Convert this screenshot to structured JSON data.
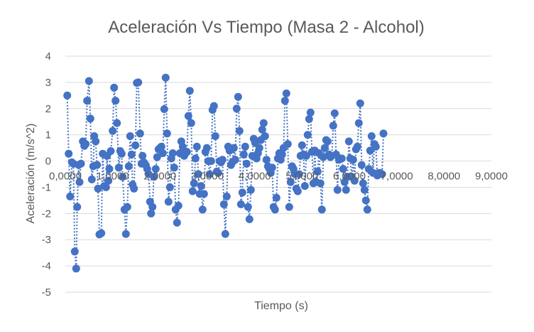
{
  "chart_data": {
    "type": "scatter",
    "title": "Aceleración Vs Tiempo (Masa 2 - Alcohol)",
    "xlabel": "Tiempo (s)",
    "ylabel": "Aceleración (m/s^2)",
    "xlim": [
      0,
      9
    ],
    "ylim": [
      -5,
      4
    ],
    "x_ticks": [
      0,
      1,
      2,
      3,
      4,
      5,
      6,
      7,
      8,
      9
    ],
    "x_tick_labels": [
      "0,0000",
      "1,0000",
      "2,0000",
      "3,0000",
      "4,0000",
      "5,0000",
      "6,0000",
      "7,0000",
      "8,0000",
      "9,0000"
    ],
    "y_ticks": [
      4,
      3,
      2,
      1,
      0,
      -1,
      -2,
      -3,
      -4,
      -5
    ],
    "y_tick_labels": [
      "4",
      "3",
      "2",
      "1",
      "0",
      "-1",
      "-2",
      "-3",
      "-4",
      "-5"
    ],
    "grid": "horizontal",
    "legend": "none",
    "marker_color": "#4472c4",
    "line_style": "dotted",
    "series": [
      {
        "points": [
          [
            0.04,
            2.5
          ],
          [
            0.07,
            0.28
          ],
          [
            0.1,
            -1.35
          ],
          [
            0.14,
            -0.05
          ],
          [
            0.17,
            -0.1
          ],
          [
            0.2,
            -3.45
          ],
          [
            0.23,
            -4.1
          ],
          [
            0.25,
            -1.75
          ],
          [
            0.28,
            -0.15
          ],
          [
            0.3,
            -0.8
          ],
          [
            0.33,
            -0.1
          ],
          [
            0.37,
            0.75
          ],
          [
            0.4,
            0.58
          ],
          [
            0.43,
            0.65
          ],
          [
            0.46,
            2.3
          ],
          [
            0.5,
            3.05
          ],
          [
            0.53,
            1.62
          ],
          [
            0.56,
            -0.7
          ],
          [
            0.59,
            -0.2
          ],
          [
            0.61,
            0.95
          ],
          [
            0.64,
            0.75
          ],
          [
            0.67,
            -0.15
          ],
          [
            0.69,
            -1.05
          ],
          [
            0.72,
            -2.8
          ],
          [
            0.76,
            -2.75
          ],
          [
            0.79,
            0.28
          ],
          [
            0.82,
            -0.95
          ],
          [
            0.86,
            -1.0
          ],
          [
            0.88,
            0.2
          ],
          [
            0.91,
            -0.75
          ],
          [
            0.93,
            -0.3
          ],
          [
            0.96,
            0.38
          ],
          [
            1.0,
            1.15
          ],
          [
            1.03,
            2.8
          ],
          [
            1.06,
            2.3
          ],
          [
            1.09,
            1.45
          ],
          [
            1.13,
            -0.25
          ],
          [
            1.16,
            0.38
          ],
          [
            1.19,
            0.28
          ],
          [
            1.21,
            -0.6
          ],
          [
            1.25,
            -1.85
          ],
          [
            1.28,
            -2.78
          ],
          [
            1.31,
            -1.75
          ],
          [
            1.34,
            -0.2
          ],
          [
            1.37,
            0.95
          ],
          [
            1.4,
            0.25
          ],
          [
            1.42,
            -0.9
          ],
          [
            1.45,
            -1.05
          ],
          [
            1.48,
            0.6
          ],
          [
            1.51,
            2.98
          ],
          [
            1.54,
            3.0
          ],
          [
            1.58,
            1.05
          ],
          [
            1.61,
            -0.1
          ],
          [
            1.63,
            0.2
          ],
          [
            1.66,
            -0.05
          ],
          [
            1.7,
            -0.15
          ],
          [
            1.73,
            -0.3
          ],
          [
            1.76,
            -0.5
          ],
          [
            1.79,
            -1.55
          ],
          [
            1.81,
            -2.0
          ],
          [
            1.84,
            -1.75
          ],
          [
            1.87,
            -0.6
          ],
          [
            1.91,
            -0.3
          ],
          [
            1.94,
            0.15
          ],
          [
            1.97,
            0.45
          ],
          [
            2.0,
            0.5
          ],
          [
            2.03,
            0.55
          ],
          [
            2.06,
            0.3
          ],
          [
            2.09,
            1.98
          ],
          [
            2.12,
            3.18
          ],
          [
            2.15,
            1.05
          ],
          [
            2.18,
            -1.55
          ],
          [
            2.21,
            -1.0
          ],
          [
            2.24,
            0.1
          ],
          [
            2.27,
            0.3
          ],
          [
            2.3,
            -0.25
          ],
          [
            2.33,
            -1.85
          ],
          [
            2.36,
            -2.35
          ],
          [
            2.39,
            -1.7
          ],
          [
            2.42,
            0.3
          ],
          [
            2.45,
            0.75
          ],
          [
            2.48,
            0.55
          ],
          [
            2.51,
            0.2
          ],
          [
            2.54,
            0.3
          ],
          [
            2.57,
            0.35
          ],
          [
            2.6,
            1.72
          ],
          [
            2.63,
            2.68
          ],
          [
            2.66,
            1.45
          ],
          [
            2.69,
            -1.15
          ],
          [
            2.72,
            -0.85
          ],
          [
            2.75,
            0.1
          ],
          [
            2.78,
            0.55
          ],
          [
            2.81,
            -0.5
          ],
          [
            2.84,
            -1.25
          ],
          [
            2.87,
            -0.95
          ],
          [
            2.9,
            -1.85
          ],
          [
            2.93,
            -1.25
          ],
          [
            2.96,
            0.35
          ],
          [
            2.99,
            0.5
          ],
          [
            3.02,
            0.0
          ],
          [
            3.05,
            -0.5
          ],
          [
            3.08,
            0.0
          ],
          [
            3.11,
            1.95
          ],
          [
            3.14,
            2.1
          ],
          [
            3.17,
            0.95
          ],
          [
            3.2,
            -0.4
          ],
          [
            3.23,
            -0.45
          ],
          [
            3.26,
            0.0
          ],
          [
            3.29,
            -0.05
          ],
          [
            3.32,
            0.05
          ],
          [
            3.35,
            -1.65
          ],
          [
            3.38,
            -2.78
          ],
          [
            3.41,
            -1.35
          ],
          [
            3.44,
            0.55
          ],
          [
            3.47,
            0.4
          ],
          [
            3.5,
            -0.15
          ],
          [
            3.53,
            -0.05
          ],
          [
            3.56,
            0.5
          ],
          [
            3.59,
            0.05
          ],
          [
            3.62,
            2.0
          ],
          [
            3.65,
            2.45
          ],
          [
            3.68,
            1.15
          ],
          [
            3.71,
            -1.65
          ],
          [
            3.74,
            -1.2
          ],
          [
            3.77,
            0.25
          ],
          [
            3.8,
            0.55
          ],
          [
            3.83,
            -0.1
          ],
          [
            3.86,
            -1.75
          ],
          [
            3.89,
            -2.22
          ],
          [
            3.92,
            -1.1
          ],
          [
            3.95,
            0.2
          ],
          [
            3.98,
            0.85
          ],
          [
            4.01,
            0.7
          ],
          [
            4.04,
            0.1
          ],
          [
            4.07,
            0.3
          ],
          [
            4.1,
            0.5
          ],
          [
            4.13,
            0.8
          ],
          [
            4.16,
            1.2
          ],
          [
            4.19,
            1.45
          ],
          [
            4.22,
            0.95
          ],
          [
            4.25,
            0.05
          ],
          [
            4.28,
            -0.2
          ],
          [
            4.31,
            -0.3
          ],
          [
            4.34,
            -0.45
          ],
          [
            4.37,
            -0.25
          ],
          [
            4.4,
            -1.75
          ],
          [
            4.43,
            -1.85
          ],
          [
            4.46,
            -1.4
          ],
          [
            4.49,
            0.1
          ],
          [
            4.52,
            0.3
          ],
          [
            4.55,
            0.05
          ],
          [
            4.58,
            0.25
          ],
          [
            4.61,
            0.5
          ],
          [
            4.64,
            2.3
          ],
          [
            4.67,
            2.58
          ],
          [
            4.7,
            0.65
          ],
          [
            4.73,
            -1.75
          ],
          [
            4.76,
            -0.8
          ],
          [
            4.79,
            -0.2
          ],
          [
            4.82,
            -0.3
          ],
          [
            4.85,
            -0.5
          ],
          [
            4.88,
            -1.05
          ],
          [
            4.91,
            -1.15
          ],
          [
            4.94,
            -0.5
          ],
          [
            4.97,
            0.2
          ],
          [
            5.0,
            0.6
          ],
          [
            5.03,
            0.25
          ],
          [
            5.06,
            -0.95
          ],
          [
            5.09,
            0.2
          ],
          [
            5.12,
            1.0
          ],
          [
            5.15,
            1.6
          ],
          [
            5.18,
            1.85
          ],
          [
            5.21,
            0.35
          ],
          [
            5.24,
            -0.85
          ],
          [
            5.27,
            0.4
          ],
          [
            5.3,
            -0.8
          ],
          [
            5.33,
            -0.4
          ],
          [
            5.36,
            0.3
          ],
          [
            5.39,
            -0.85
          ],
          [
            5.42,
            -1.85
          ],
          [
            5.45,
            0.15
          ],
          [
            5.48,
            0.5
          ],
          [
            5.51,
            0.8
          ],
          [
            5.54,
            0.75
          ],
          [
            5.57,
            0.25
          ],
          [
            5.6,
            0.15
          ],
          [
            5.63,
            0.2
          ],
          [
            5.66,
            1.35
          ],
          [
            5.69,
            1.82
          ],
          [
            5.72,
            0.25
          ],
          [
            5.75,
            -1.1
          ],
          [
            5.78,
            0.05
          ],
          [
            5.81,
            0.1
          ],
          [
            5.84,
            0.1
          ],
          [
            5.87,
            -0.3
          ],
          [
            5.9,
            -0.8
          ],
          [
            5.93,
            -1.1
          ],
          [
            5.96,
            -0.6
          ],
          [
            5.99,
            0.75
          ],
          [
            6.02,
            0.1
          ],
          [
            6.05,
            -0.6
          ],
          [
            6.08,
            0.05
          ],
          [
            6.11,
            -0.75
          ],
          [
            6.14,
            0.45
          ],
          [
            6.17,
            0.55
          ],
          [
            6.2,
            1.45
          ],
          [
            6.23,
            2.2
          ],
          [
            6.26,
            -0.15
          ],
          [
            6.29,
            -0.85
          ],
          [
            6.32,
            -1.1
          ],
          [
            6.35,
            -1.5
          ],
          [
            6.38,
            -1.85
          ],
          [
            6.41,
            -0.3
          ],
          [
            6.44,
            0.4
          ],
          [
            6.47,
            0.95
          ],
          [
            6.5,
            -0.45
          ],
          [
            6.53,
            0.65
          ],
          [
            6.56,
            0.55
          ],
          [
            6.59,
            -0.55
          ],
          [
            6.62,
            -0.45
          ],
          [
            6.65,
            -0.45
          ],
          [
            6.69,
            -0.5
          ],
          [
            6.72,
            1.05
          ]
        ]
      }
    ]
  }
}
